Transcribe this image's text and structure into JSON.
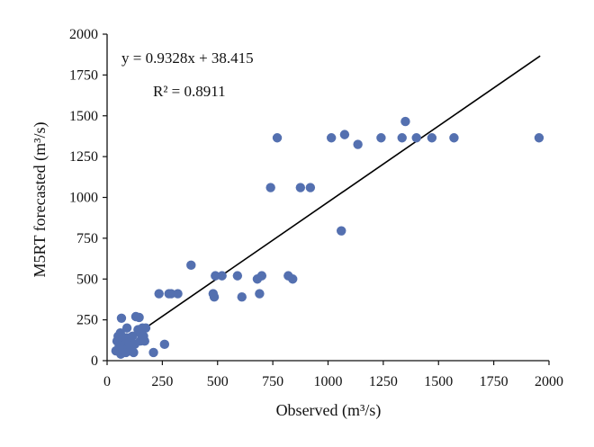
{
  "chart_data": {
    "type": "scatter",
    "xlabel": "Observed (m³/s)",
    "ylabel": "M5RT forecasted (m³/s)",
    "xlim": [
      0,
      2000
    ],
    "ylim": [
      0,
      2000
    ],
    "x_ticks": [
      0,
      250,
      500,
      750,
      1000,
      1250,
      1500,
      1750,
      2000
    ],
    "y_ticks": [
      0,
      250,
      500,
      750,
      1000,
      1250,
      1500,
      1750,
      2000
    ],
    "grid": false,
    "legend": "none",
    "point_color": "#5470b0",
    "annotations": {
      "equation": "y = 0.9328x + 38.415",
      "r_squared": "R² = 0.8911"
    },
    "trendline": {
      "slope": 0.9328,
      "intercept": 38.415,
      "x_range": [
        40,
        1960
      ]
    },
    "points": [
      [
        40,
        60
      ],
      [
        45,
        120
      ],
      [
        50,
        150
      ],
      [
        55,
        90
      ],
      [
        60,
        170
      ],
      [
        62,
        40
      ],
      [
        65,
        260
      ],
      [
        70,
        130
      ],
      [
        75,
        60
      ],
      [
        80,
        100
      ],
      [
        85,
        50
      ],
      [
        88,
        140
      ],
      [
        90,
        200
      ],
      [
        95,
        80
      ],
      [
        100,
        110
      ],
      [
        105,
        60
      ],
      [
        110,
        90
      ],
      [
        115,
        150
      ],
      [
        120,
        50
      ],
      [
        125,
        100
      ],
      [
        130,
        270
      ],
      [
        140,
        190
      ],
      [
        145,
        265
      ],
      [
        150,
        120
      ],
      [
        155,
        160
      ],
      [
        160,
        200
      ],
      [
        165,
        150
      ],
      [
        170,
        120
      ],
      [
        175,
        200
      ],
      [
        210,
        50
      ],
      [
        235,
        410
      ],
      [
        260,
        100
      ],
      [
        280,
        410
      ],
      [
        290,
        410
      ],
      [
        320,
        410
      ],
      [
        380,
        585
      ],
      [
        480,
        410
      ],
      [
        485,
        390
      ],
      [
        490,
        520
      ],
      [
        520,
        520
      ],
      [
        590,
        520
      ],
      [
        610,
        390
      ],
      [
        680,
        500
      ],
      [
        690,
        410
      ],
      [
        700,
        520
      ],
      [
        740,
        1060
      ],
      [
        770,
        1365
      ],
      [
        820,
        520
      ],
      [
        840,
        500
      ],
      [
        875,
        1060
      ],
      [
        920,
        1060
      ],
      [
        1015,
        1365
      ],
      [
        1060,
        795
      ],
      [
        1075,
        1385
      ],
      [
        1135,
        1325
      ],
      [
        1240,
        1365
      ],
      [
        1335,
        1365
      ],
      [
        1350,
        1465
      ],
      [
        1400,
        1365
      ],
      [
        1470,
        1365
      ],
      [
        1570,
        1365
      ],
      [
        1955,
        1365
      ]
    ]
  }
}
